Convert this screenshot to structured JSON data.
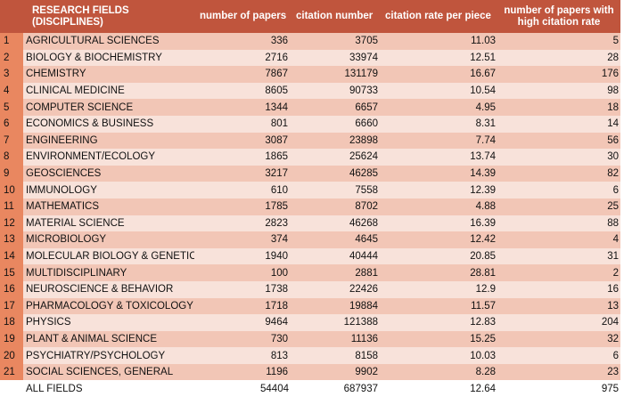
{
  "header": {
    "field": "RESEARCH FIELDS (DISCIPLINES)",
    "papers": "number of papers",
    "citations": "citation number",
    "rate": "citation rate per piece",
    "high": "number of papers with high citation rate"
  },
  "rows": [
    {
      "idx": "1",
      "field": "AGRICULTURAL SCIENCES",
      "papers": "336",
      "citations": "3705",
      "rate": "11.03",
      "high": "5"
    },
    {
      "idx": "2",
      "field": "BIOLOGY & BIOCHEMISTRY",
      "papers": "2716",
      "citations": "33974",
      "rate": "12.51",
      "high": "28"
    },
    {
      "idx": "3",
      "field": "CHEMISTRY",
      "papers": "7867",
      "citations": "131179",
      "rate": "16.67",
      "high": "176"
    },
    {
      "idx": "4",
      "field": "CLINICAL MEDICINE",
      "papers": "8605",
      "citations": "90733",
      "rate": "10.54",
      "high": "98"
    },
    {
      "idx": "5",
      "field": "COMPUTER SCIENCE",
      "papers": "1344",
      "citations": "6657",
      "rate": "4.95",
      "high": "18"
    },
    {
      "idx": "6",
      "field": "ECONOMICS & BUSINESS",
      "papers": "801",
      "citations": "6660",
      "rate": "8.31",
      "high": "14"
    },
    {
      "idx": "7",
      "field": "ENGINEERING",
      "papers": "3087",
      "citations": "23898",
      "rate": "7.74",
      "high": "56"
    },
    {
      "idx": "8",
      "field": "ENVIRONMENT/ECOLOGY",
      "papers": "1865",
      "citations": "25624",
      "rate": "13.74",
      "high": "30"
    },
    {
      "idx": "9",
      "field": "GEOSCIENCES",
      "papers": "3217",
      "citations": "46285",
      "rate": "14.39",
      "high": "82"
    },
    {
      "idx": "10",
      "field": "IMMUNOLOGY",
      "papers": "610",
      "citations": "7558",
      "rate": "12.39",
      "high": "6"
    },
    {
      "idx": "11",
      "field": "MATHEMATICS",
      "papers": "1785",
      "citations": "8702",
      "rate": "4.88",
      "high": "25"
    },
    {
      "idx": "12",
      "field": "MATERIAL SCIENCE",
      "papers": "2823",
      "citations": "46268",
      "rate": "16.39",
      "high": "88"
    },
    {
      "idx": "13",
      "field": "MICROBIOLOGY",
      "papers": "374",
      "citations": "4645",
      "rate": "12.42",
      "high": "4"
    },
    {
      "idx": "14",
      "field": "MOLECULAR BIOLOGY & GENETICS",
      "papers": "1940",
      "citations": "40444",
      "rate": "20.85",
      "high": "31"
    },
    {
      "idx": "15",
      "field": "MULTIDISCIPLINARY",
      "papers": "100",
      "citations": "2881",
      "rate": "28.81",
      "high": "2"
    },
    {
      "idx": "16",
      "field": "NEUROSCIENCE & BEHAVIOR",
      "papers": "1738",
      "citations": "22426",
      "rate": "12.9",
      "high": "16"
    },
    {
      "idx": "17",
      "field": "PHARMACOLOGY & TOXICOLOGY",
      "papers": "1718",
      "citations": "19884",
      "rate": "11.57",
      "high": "13"
    },
    {
      "idx": "18",
      "field": "PHYSICS",
      "papers": "9464",
      "citations": "121388",
      "rate": "12.83",
      "high": "204"
    },
    {
      "idx": "19",
      "field": "PLANT & ANIMAL SCIENCE",
      "papers": "730",
      "citations": "11136",
      "rate": "15.25",
      "high": "32"
    },
    {
      "idx": "20",
      "field": "PSYCHIATRY/PSYCHOLOGY",
      "papers": "813",
      "citations": "8158",
      "rate": "10.03",
      "high": "6"
    },
    {
      "idx": "21",
      "field": "SOCIAL SCIENCES, GENERAL",
      "papers": "1196",
      "citations": "9902",
      "rate": "8.28",
      "high": "23"
    }
  ],
  "total": {
    "field": "ALL FIELDS",
    "papers": "54404",
    "citations": "687937",
    "rate": "12.64",
    "high": "975"
  },
  "colors": {
    "header_bg": "#c0553d",
    "index_bg": "#e98760",
    "row_odd": "#f2c6b6",
    "row_even": "#f8e2da"
  }
}
